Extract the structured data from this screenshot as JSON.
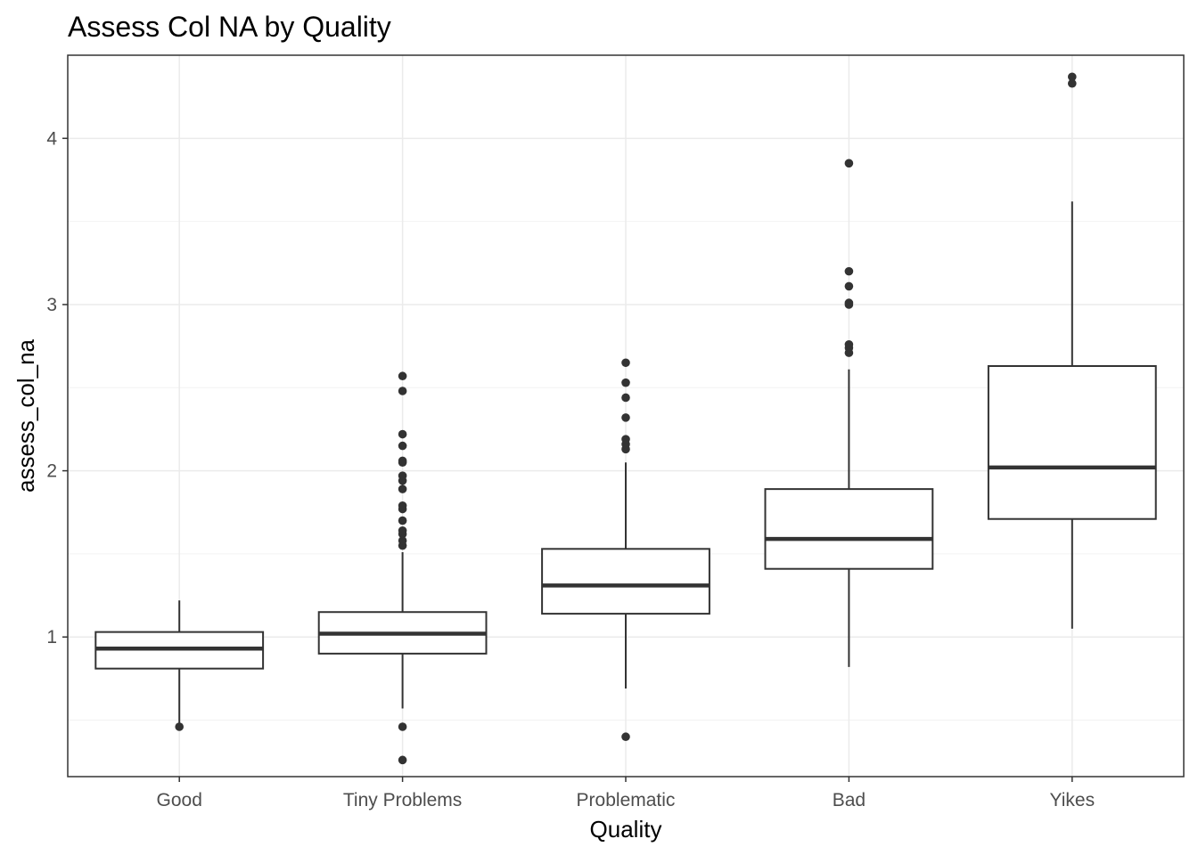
{
  "chart_data": {
    "type": "boxplot",
    "title": "Assess Col NA by Quality",
    "xlabel": "Quality",
    "ylabel": "assess_col_na",
    "ylim": [
      0.16,
      4.5
    ],
    "yticks": [
      1,
      2,
      3,
      4
    ],
    "yticks_labels": [
      "1",
      "2",
      "3",
      "4"
    ],
    "grid": true,
    "legend": "none",
    "categories": [
      "Good",
      "Tiny Problems",
      "Problematic",
      "Bad",
      "Yikes"
    ],
    "boxes": [
      {
        "category": "Good",
        "whisker_low": 0.46,
        "q1": 0.81,
        "median": 0.93,
        "q3": 1.03,
        "whisker_high": 1.22,
        "outliers": [
          0.46
        ]
      },
      {
        "category": "Tiny Problems",
        "whisker_low": 0.57,
        "q1": 0.9,
        "median": 1.02,
        "q3": 1.15,
        "whisker_high": 1.51,
        "outliers": [
          0.26,
          0.46,
          1.55,
          1.58,
          1.62,
          1.64,
          1.7,
          1.77,
          1.79,
          1.89,
          1.94,
          1.97,
          2.05,
          2.06,
          2.15,
          2.22,
          2.48,
          2.57
        ]
      },
      {
        "category": "Problematic",
        "whisker_low": 0.69,
        "q1": 1.14,
        "median": 1.31,
        "q3": 1.53,
        "whisker_high": 2.05,
        "outliers": [
          0.4,
          2.13,
          2.16,
          2.19,
          2.32,
          2.44,
          2.53,
          2.65
        ]
      },
      {
        "category": "Bad",
        "whisker_low": 0.82,
        "q1": 1.41,
        "median": 1.59,
        "q3": 1.89,
        "whisker_high": 2.61,
        "outliers": [
          2.71,
          2.74,
          2.76,
          3.0,
          3.01,
          3.11,
          3.2,
          3.85
        ]
      },
      {
        "category": "Yikes",
        "whisker_low": 1.05,
        "q1": 1.71,
        "median": 2.02,
        "q3": 2.63,
        "whisker_high": 3.62,
        "outliers": [
          4.33,
          4.37
        ]
      }
    ],
    "colors": {
      "box_stroke": "#333333",
      "outlier": "#333333",
      "grid_major": "#ebebeb",
      "grid_minor": "#f2f2f2",
      "panel_border": "#333333"
    }
  }
}
